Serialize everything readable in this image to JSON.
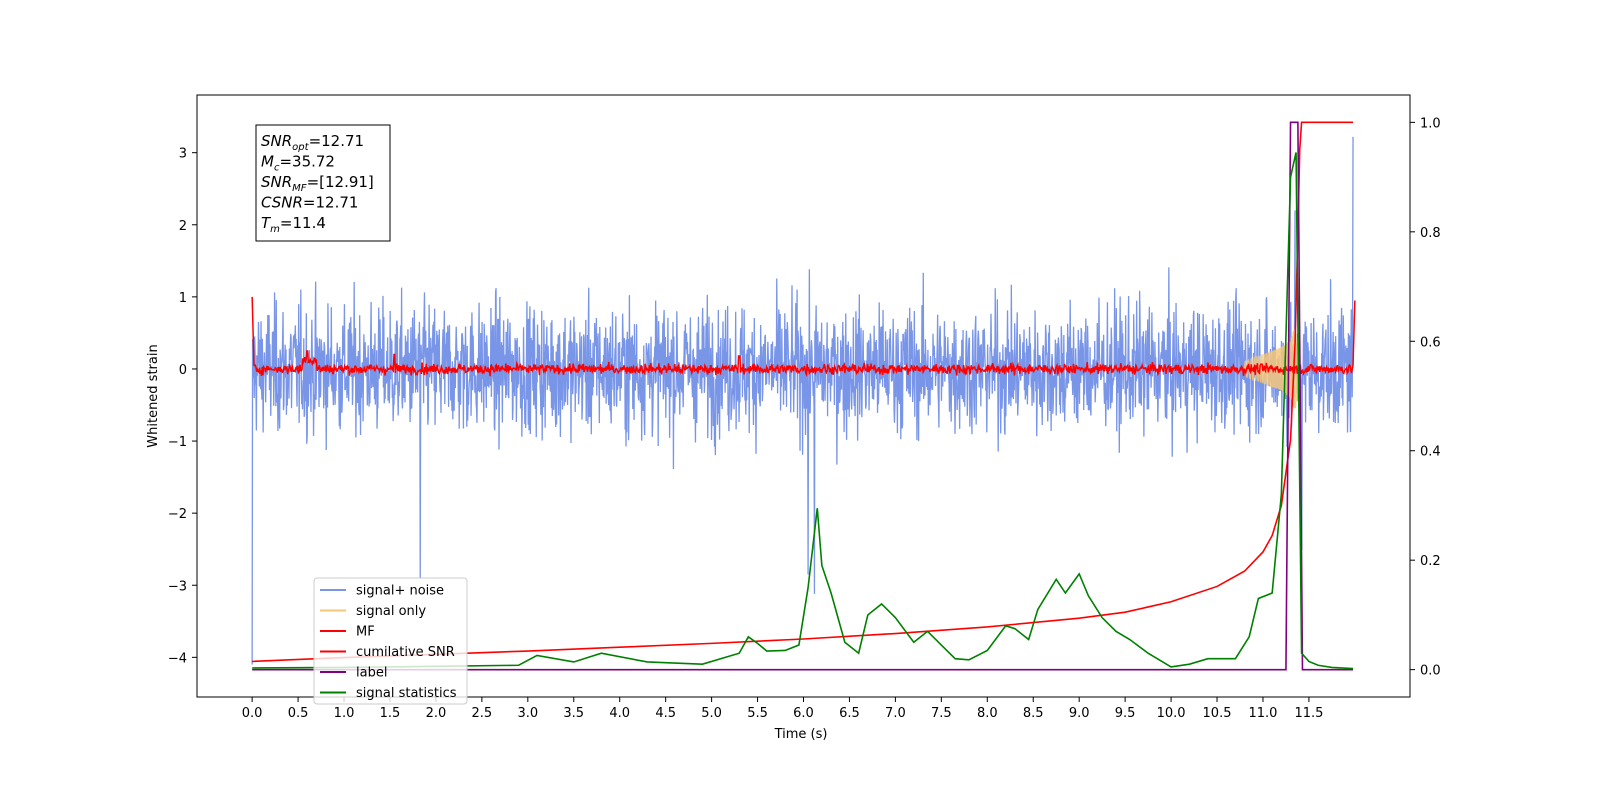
{
  "chart_data": {
    "type": "line",
    "xlabel": "Time (s)",
    "ylabel": "Whitened strain",
    "xlim": [
      -0.6,
      12.6
    ],
    "ylim": [
      -4.55,
      3.8
    ],
    "ylim_right": [
      -0.05,
      1.05
    ],
    "grid": false,
    "legend_position": "lower-left",
    "x_ticks": [
      0.0,
      0.5,
      1.0,
      1.5,
      2.0,
      2.5,
      3.0,
      3.5,
      4.0,
      4.5,
      5.0,
      5.5,
      6.0,
      6.5,
      7.0,
      7.5,
      8.0,
      8.5,
      9.0,
      9.5,
      10.0,
      10.5,
      11.0,
      11.5
    ],
    "x_tick_labels": [
      "0.0",
      "0.5",
      "1.0",
      "1.5",
      "2.0",
      "2.5",
      "3.0",
      "3.5",
      "4.0",
      "4.5",
      "5.0",
      "5.5",
      "6.0",
      "6.5",
      "7.0",
      "7.5",
      "8.0",
      "8.5",
      "9.0",
      "9.5",
      "10.0",
      "10.5",
      "11.0",
      "11.5"
    ],
    "y_ticks": [
      -4,
      -3,
      -2,
      -1,
      0,
      1,
      2,
      3
    ],
    "y_tick_labels": [
      "−4",
      "−3",
      "−2",
      "−1",
      "0",
      "1",
      "2",
      "3"
    ],
    "y_right_ticks": [
      0.0,
      0.2,
      0.4,
      0.6,
      0.8,
      1.0
    ],
    "y_right_tick_labels": [
      "0.0",
      "0.2",
      "0.4",
      "0.6",
      "0.8",
      "1.0"
    ],
    "annotation": [
      {
        "main": "SNR",
        "sub": "opt",
        "rest": "=12.71"
      },
      {
        "main": "M",
        "sub": "c",
        "rest": "=35.72"
      },
      {
        "main": "SNR",
        "sub": "MF",
        "rest": "=[12.91]"
      },
      {
        "main": "CSNR",
        "sub": "",
        "rest": "=12.71"
      },
      {
        "main": "T",
        "sub": "m",
        "rest": "=11.4"
      }
    ],
    "series": [
      {
        "name": "signal+ noise",
        "color": "#7895e8",
        "axis": "left",
        "description_range": [
          -2.6,
          2.65
        ],
        "x": [
          0.0,
          1.83,
          6.05,
          6.12,
          11.35,
          11.42,
          11.98
        ],
        "y": [
          -4.1,
          -2.9,
          -2.85,
          -3.12,
          2.2,
          -2.5,
          3.22
        ]
      },
      {
        "name": "signal only",
        "color": "#f5c77a",
        "axis": "left",
        "x": [
          10.8,
          11.0,
          11.2,
          11.3,
          11.35,
          11.4
        ],
        "y": [
          0.1,
          0.2,
          0.3,
          0.4,
          0.6,
          0.0
        ]
      },
      {
        "name": "MF",
        "color": "#ff0000",
        "axis": "left",
        "x": [
          0.0,
          0.02,
          0.6,
          1.55,
          5.3,
          11.98,
          12.0
        ],
        "y": [
          1.0,
          0.05,
          0.25,
          0.2,
          0.18,
          0.05,
          0.95
        ]
      },
      {
        "name": "cumilative SNR",
        "color": "#ff0000",
        "axis": "right",
        "x": [
          0.0,
          1.0,
          2.0,
          3.0,
          4.0,
          5.0,
          6.0,
          7.0,
          8.0,
          9.0,
          9.5,
          10.0,
          10.5,
          10.8,
          11.0,
          11.1,
          11.2,
          11.3,
          11.35,
          11.38,
          11.4,
          11.42,
          11.98
        ],
        "y": [
          0.015,
          0.022,
          0.028,
          0.034,
          0.041,
          0.048,
          0.056,
          0.066,
          0.078,
          0.094,
          0.105,
          0.124,
          0.152,
          0.18,
          0.215,
          0.245,
          0.3,
          0.42,
          0.6,
          0.8,
          0.95,
          1.0,
          1.0
        ]
      },
      {
        "name": "label",
        "color": "#800080",
        "axis": "right",
        "x": [
          0.0,
          11.25,
          11.3,
          11.32,
          11.38,
          11.43,
          11.98
        ],
        "y": [
          0.0,
          0.0,
          1.0,
          1.0,
          1.0,
          0.0,
          0.0
        ]
      },
      {
        "name": "signal statistics",
        "color": "#008000",
        "axis": "right",
        "x": [
          0.0,
          1.0,
          2.0,
          2.9,
          3.1,
          3.5,
          3.8,
          4.3,
          4.9,
          5.3,
          5.4,
          5.5,
          5.6,
          5.8,
          5.95,
          6.05,
          6.15,
          6.2,
          6.3,
          6.45,
          6.6,
          6.7,
          6.85,
          7.0,
          7.2,
          7.35,
          7.5,
          7.65,
          7.8,
          8.0,
          8.2,
          8.3,
          8.45,
          8.55,
          8.75,
          8.85,
          9.0,
          9.1,
          9.25,
          9.4,
          9.55,
          9.75,
          10.0,
          10.2,
          10.4,
          10.7,
          10.85,
          10.95,
          11.1,
          11.2,
          11.3,
          11.36,
          11.42,
          11.5,
          11.6,
          11.75,
          11.98
        ],
        "y": [
          0.003,
          0.004,
          0.006,
          0.008,
          0.026,
          0.014,
          0.03,
          0.014,
          0.01,
          0.03,
          0.06,
          0.048,
          0.034,
          0.035,
          0.045,
          0.15,
          0.295,
          0.19,
          0.14,
          0.05,
          0.03,
          0.1,
          0.12,
          0.095,
          0.05,
          0.07,
          0.045,
          0.02,
          0.018,
          0.035,
          0.08,
          0.075,
          0.055,
          0.11,
          0.165,
          0.14,
          0.175,
          0.135,
          0.095,
          0.07,
          0.055,
          0.03,
          0.005,
          0.01,
          0.02,
          0.02,
          0.06,
          0.13,
          0.14,
          0.32,
          0.9,
          0.945,
          0.03,
          0.015,
          0.008,
          0.004,
          0.002
        ]
      }
    ]
  }
}
